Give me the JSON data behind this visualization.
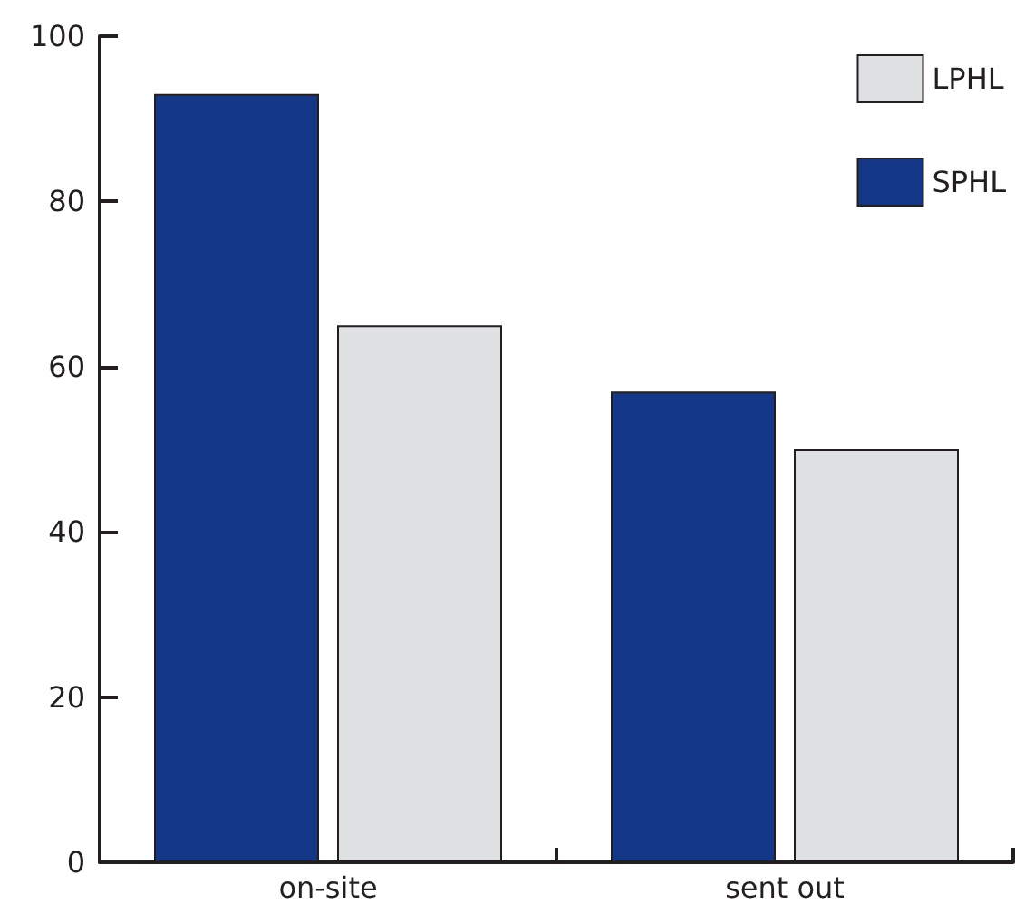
{
  "chart_data": {
    "type": "bar",
    "categories": [
      "on-site",
      "sent out"
    ],
    "series": [
      {
        "name": "SPHL",
        "color": "#153787",
        "values": [
          93,
          57
        ]
      },
      {
        "name": "LPHL",
        "color": "#e0e1e3",
        "values": [
          65,
          50
        ]
      }
    ],
    "ylim": [
      0,
      100
    ],
    "yticks": [
      0,
      20,
      40,
      60,
      80,
      100
    ],
    "grid": false,
    "legend": "top right"
  }
}
